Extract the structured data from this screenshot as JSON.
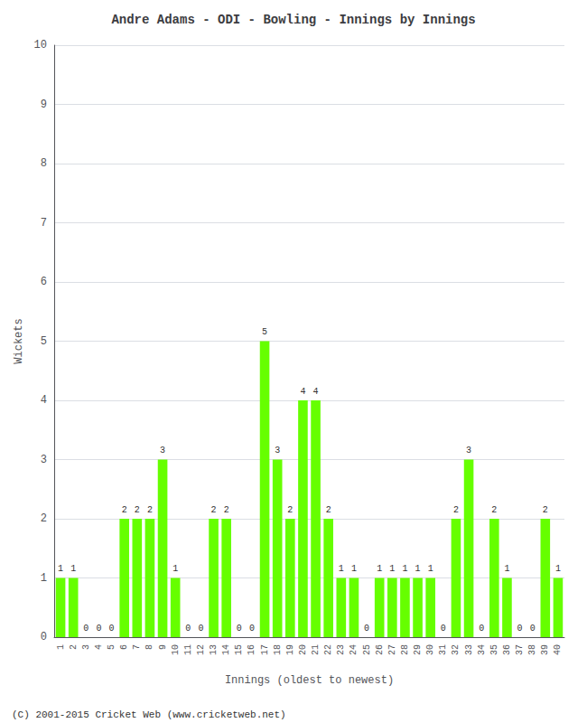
{
  "chart_data": {
    "type": "bar",
    "title": "Andre Adams - ODI - Bowling - Innings by Innings",
    "xlabel": "Innings (oldest to newest)",
    "ylabel": "Wickets",
    "annotations": [
      "(C) 2001-2015 Cricket Web (www.cricketweb.net)"
    ],
    "categories": [
      "1",
      "2",
      "3",
      "4",
      "5",
      "6",
      "7",
      "8",
      "9",
      "10",
      "11",
      "12",
      "13",
      "14",
      "15",
      "16",
      "17",
      "18",
      "19",
      "20",
      "21",
      "22",
      "23",
      "24",
      "25",
      "26",
      "27",
      "28",
      "29",
      "30",
      "31",
      "32",
      "33",
      "34",
      "35",
      "36",
      "37",
      "38",
      "39",
      "40"
    ],
    "values": [
      1,
      1,
      0,
      0,
      0,
      2,
      2,
      2,
      3,
      1,
      0,
      0,
      2,
      2,
      0,
      0,
      5,
      3,
      2,
      4,
      4,
      2,
      1,
      1,
      0,
      1,
      1,
      1,
      1,
      1,
      0,
      2,
      3,
      0,
      2,
      1,
      0,
      0,
      2,
      1
    ],
    "color": "#66ff00",
    "ylim": [
      0,
      10
    ],
    "yticks": [
      0,
      1,
      2,
      3,
      4,
      5,
      6,
      7,
      8,
      9,
      10
    ],
    "grid": true,
    "data_labels": true
  }
}
